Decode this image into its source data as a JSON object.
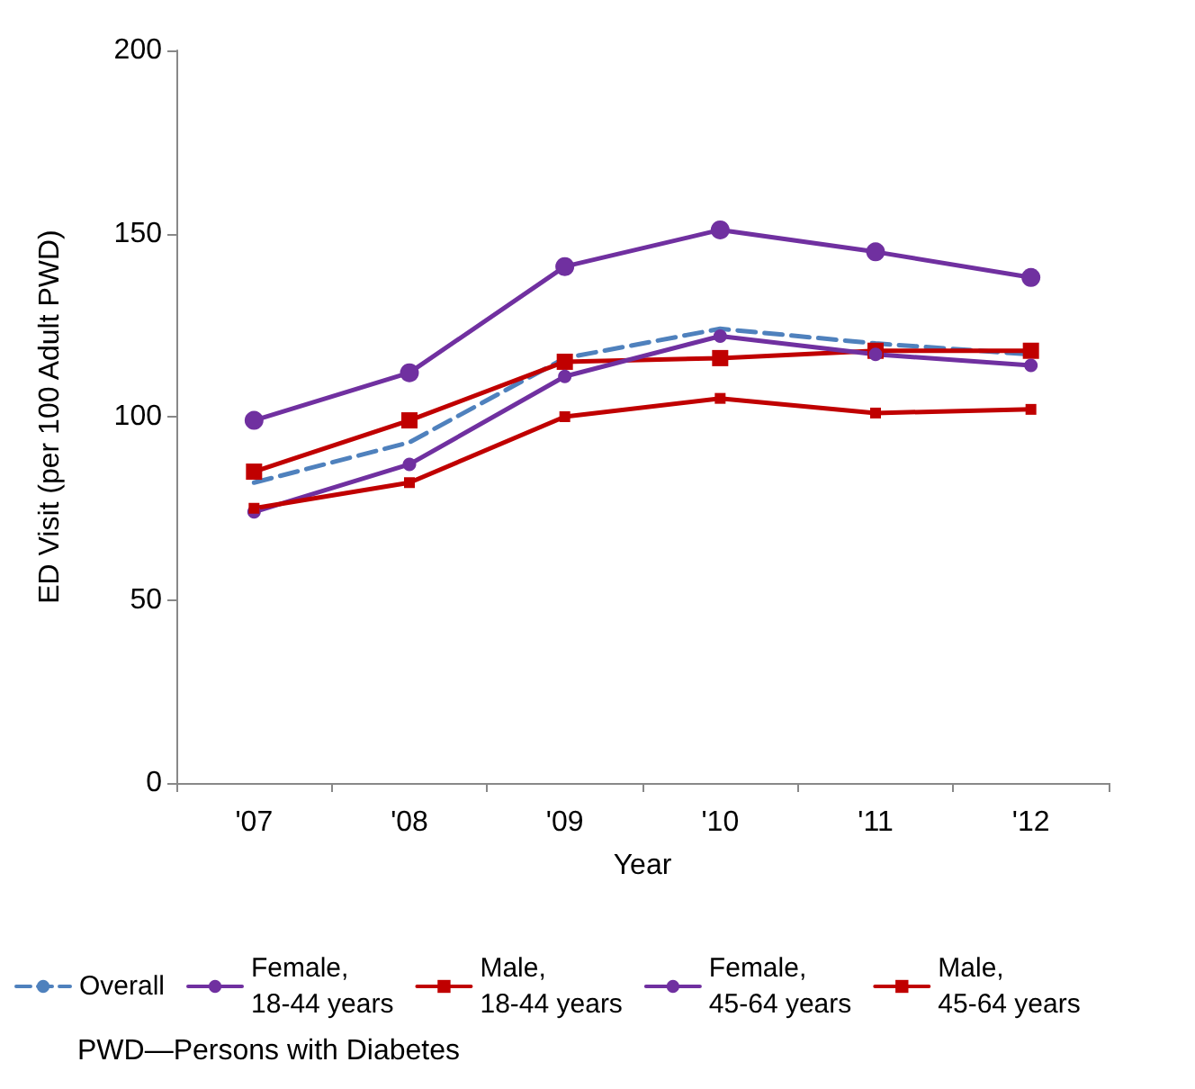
{
  "chart_data": {
    "type": "line",
    "xlabel": "Year",
    "ylabel": "ED Visit (per 100 Adult PWD)",
    "categories": [
      "'07",
      "'08",
      "'09",
      "'10",
      "'11",
      "'12"
    ],
    "ylim": [
      0,
      200
    ],
    "yticks": [
      0,
      50,
      100,
      150,
      200
    ],
    "grid": false,
    "legend": "bottom",
    "annotations": [
      "PWD—Persons with Diabetes"
    ],
    "series": [
      {
        "name": "Overall",
        "color": "#4f81bd",
        "values": [
          82,
          93,
          116,
          124,
          120,
          117
        ],
        "marker": "none",
        "line_style": "dashed"
      },
      {
        "name": "Female,\n18-44 years",
        "color": "#7030a0",
        "values": [
          99,
          112,
          141,
          151,
          145,
          138
        ],
        "marker": "circle",
        "line_style": "solid"
      },
      {
        "name": "Male,\n18-44 years",
        "color": "#c00000",
        "values": [
          85,
          99,
          115,
          116,
          118,
          118
        ],
        "marker": "square",
        "line_style": "solid"
      },
      {
        "name": "Female,\n45-64 years",
        "color": "#7030a0",
        "values": [
          74,
          87,
          111,
          122,
          117,
          114
        ],
        "marker": "circle",
        "line_style": "solid"
      },
      {
        "name": "Male,\n45-64 years",
        "color": "#c00000",
        "values": [
          75,
          82,
          100,
          105,
          101,
          102
        ],
        "marker": "square",
        "line_style": "solid"
      }
    ]
  }
}
